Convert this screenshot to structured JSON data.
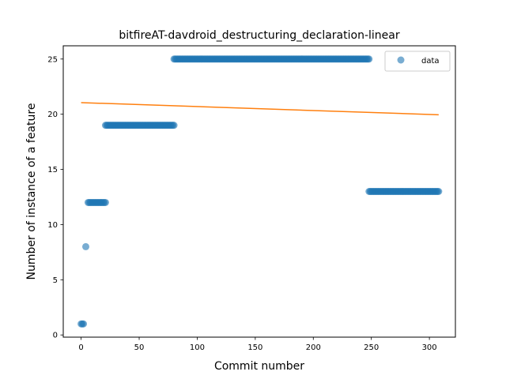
{
  "chart_data": {
    "type": "scatter",
    "title": "bitfireAT-davdroid_destructuring_declaration-linear",
    "xlabel": "Commit number",
    "ylabel": "Number of instance of a feature",
    "xlim": [
      -15.4,
      322.4
    ],
    "ylim": [
      -0.2,
      26.2
    ],
    "xticks": [
      0,
      50,
      100,
      150,
      200,
      250,
      300
    ],
    "yticks": [
      0,
      5,
      10,
      15,
      20,
      25
    ],
    "grid": false,
    "legend_position": "top-right",
    "colors": {
      "data": "#1f77b4",
      "fit": "#ff7f0e",
      "axes": "#000000"
    },
    "segments": [
      {
        "x_start": 0,
        "x_end": 2,
        "y": 1
      },
      {
        "x_start": 4,
        "x_end": 4,
        "y": 8
      },
      {
        "x_start": 6,
        "x_end": 21,
        "y": 12
      },
      {
        "x_start": 21,
        "x_end": 80,
        "y": 19
      },
      {
        "x_start": 80,
        "x_end": 248,
        "y": 25
      },
      {
        "x_start": 248,
        "x_end": 308,
        "y": 13
      }
    ],
    "series": [
      {
        "name": "data",
        "kind": "points"
      },
      {
        "kind": "line",
        "x": [
          0,
          308
        ],
        "y": [
          21.05,
          19.95
        ]
      }
    ]
  }
}
